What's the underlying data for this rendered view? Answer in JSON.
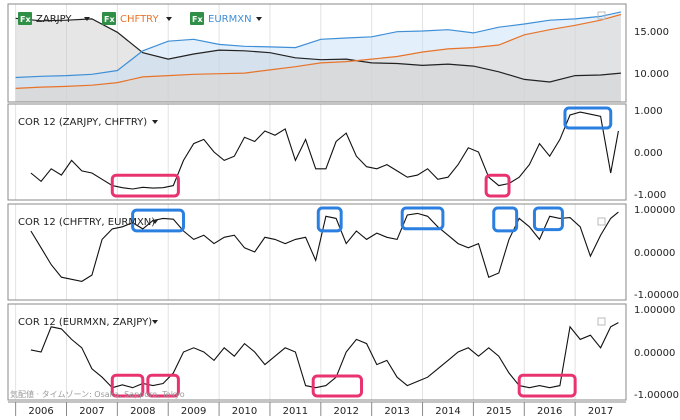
{
  "colors": {
    "background": "#ffffff",
    "zarjpy": "#222222",
    "chftry": "#e8742a",
    "eurmxn": "#3f8fd6",
    "correlation": "#111111",
    "highlight_pink": "#e8336f",
    "highlight_blue": "#2a7fe0",
    "zarjpy_fill": "#c8c8c8",
    "chftry_fill": "#f6c9a6",
    "eurmxn_fill": "#c2dcf3"
  },
  "legend": {
    "fx_icon_label": "Fx",
    "items": [
      {
        "label": "ZARJPY",
        "color": "#222222"
      },
      {
        "label": "CHFTRY",
        "color": "#e8742a"
      },
      {
        "label": "EURMXN",
        "color": "#3f8fd6"
      }
    ]
  },
  "watermark": "気配値 · タイムゾーン: Osaka, Sapporo, Tokyo",
  "x_axis": {
    "range": [
      2005.85,
      2018.0
    ],
    "years": [
      "2006",
      "2007",
      "2008",
      "2009",
      "2010",
      "2011",
      "2012",
      "2013",
      "2014",
      "2015",
      "2016",
      "2017"
    ]
  },
  "chart_data": [
    {
      "type": "area",
      "y_ticks": [
        "15.000",
        "10.000"
      ],
      "ylim": [
        5.0,
        18.5
      ],
      "x": [
        2006.0,
        2006.5,
        2007.0,
        2007.5,
        2008.0,
        2008.5,
        2009.0,
        2009.5,
        2010.0,
        2010.5,
        2011.0,
        2011.5,
        2012.0,
        2012.5,
        2013.0,
        2013.5,
        2014.0,
        2014.5,
        2015.0,
        2015.5,
        2016.0,
        2016.5,
        2017.0,
        2017.5,
        2017.9
      ],
      "series": [
        {
          "name": "ZARJPY",
          "values": [
            17.2,
            16.8,
            16.9,
            17.1,
            15.0,
            11.8,
            10.8,
            11.6,
            12.2,
            12.1,
            11.8,
            11.0,
            10.7,
            10.8,
            10.2,
            10.1,
            9.8,
            10.0,
            9.7,
            8.8,
            7.6,
            7.2,
            8.2,
            8.3,
            8.6
          ]
        },
        {
          "name": "CHFTRY",
          "values": [
            6.2,
            6.4,
            6.5,
            6.7,
            7.1,
            8.0,
            8.2,
            8.4,
            8.5,
            8.6,
            9.1,
            9.6,
            10.2,
            10.4,
            10.8,
            11.2,
            11.9,
            12.4,
            12.6,
            13.0,
            14.6,
            15.4,
            16.1,
            16.9,
            17.8
          ]
        },
        {
          "name": "EURMXN",
          "values": [
            7.9,
            8.1,
            8.2,
            8.4,
            9.0,
            12.1,
            13.6,
            13.9,
            13.1,
            12.8,
            12.7,
            12.6,
            13.9,
            14.1,
            14.3,
            15.1,
            15.2,
            15.4,
            14.9,
            15.8,
            16.3,
            16.9,
            17.1,
            17.5,
            18.2
          ]
        }
      ]
    },
    {
      "type": "line",
      "title": "COR 12 (ZARJPY, CHFTRY)",
      "y_ticks": [
        "1.000",
        "0.000",
        "-1.000"
      ],
      "ylim": [
        -1.0,
        1.0
      ],
      "x": [
        2006.3,
        2006.5,
        2006.7,
        2006.9,
        2007.1,
        2007.3,
        2007.5,
        2007.7,
        2007.9,
        2008.1,
        2008.3,
        2008.5,
        2008.7,
        2008.9,
        2009.1,
        2009.3,
        2009.5,
        2009.7,
        2009.9,
        2010.1,
        2010.3,
        2010.5,
        2010.7,
        2010.9,
        2011.1,
        2011.3,
        2011.5,
        2011.7,
        2011.9,
        2012.1,
        2012.3,
        2012.5,
        2012.7,
        2012.9,
        2013.1,
        2013.3,
        2013.5,
        2013.7,
        2013.9,
        2014.1,
        2014.3,
        2014.5,
        2014.7,
        2014.9,
        2015.1,
        2015.3,
        2015.5,
        2015.7,
        2015.9,
        2016.1,
        2016.3,
        2016.5,
        2016.7,
        2016.9,
        2017.1,
        2017.3,
        2017.5,
        2017.7,
        2017.85
      ],
      "values": [
        -0.5,
        -0.7,
        -0.4,
        -0.55,
        -0.2,
        -0.45,
        -0.5,
        -0.65,
        -0.8,
        -0.85,
        -0.88,
        -0.84,
        -0.86,
        -0.85,
        -0.8,
        -0.2,
        0.2,
        0.3,
        0.0,
        -0.2,
        -0.1,
        0.35,
        0.25,
        0.5,
        0.4,
        0.55,
        -0.2,
        0.3,
        -0.4,
        -0.4,
        0.25,
        0.45,
        -0.1,
        -0.35,
        -0.4,
        -0.3,
        -0.45,
        -0.6,
        -0.55,
        -0.4,
        -0.65,
        -0.6,
        -0.3,
        0.1,
        0.0,
        -0.6,
        -0.8,
        -0.75,
        -0.6,
        -0.3,
        0.2,
        -0.1,
        0.3,
        0.88,
        0.95,
        0.9,
        0.85,
        -0.5,
        0.5
      ]
    },
    {
      "type": "line",
      "title": "COR 12 (CHFTRY, EURMXN)",
      "y_ticks": [
        "1.00000",
        "0.00000",
        "-1.00000"
      ],
      "ylim": [
        -1.0,
        1.0
      ],
      "x": [
        2006.3,
        2006.5,
        2006.7,
        2006.9,
        2007.1,
        2007.3,
        2007.5,
        2007.7,
        2007.9,
        2008.1,
        2008.3,
        2008.5,
        2008.7,
        2008.9,
        2009.1,
        2009.3,
        2009.5,
        2009.7,
        2009.9,
        2010.1,
        2010.3,
        2010.5,
        2010.7,
        2010.9,
        2011.1,
        2011.3,
        2011.5,
        2011.7,
        2011.9,
        2012.1,
        2012.3,
        2012.5,
        2012.7,
        2012.9,
        2013.1,
        2013.3,
        2013.5,
        2013.7,
        2013.9,
        2014.1,
        2014.3,
        2014.5,
        2014.7,
        2014.9,
        2015.1,
        2015.3,
        2015.5,
        2015.7,
        2015.9,
        2016.1,
        2016.3,
        2016.5,
        2016.7,
        2016.9,
        2017.1,
        2017.3,
        2017.5,
        2017.7,
        2017.85
      ],
      "values": [
        0.5,
        0.1,
        -0.3,
        -0.6,
        -0.65,
        -0.7,
        -0.55,
        0.3,
        0.55,
        0.6,
        0.7,
        0.55,
        0.75,
        0.8,
        0.78,
        0.5,
        0.3,
        0.4,
        0.2,
        0.35,
        0.4,
        0.1,
        0.0,
        0.35,
        0.3,
        0.2,
        0.3,
        0.35,
        -0.2,
        0.85,
        0.8,
        0.2,
        0.5,
        0.3,
        0.45,
        0.35,
        0.3,
        0.88,
        0.92,
        0.85,
        0.6,
        0.4,
        0.2,
        0.1,
        0.2,
        -0.6,
        -0.5,
        0.3,
        0.8,
        0.6,
        0.3,
        0.85,
        0.8,
        0.82,
        0.6,
        -0.1,
        0.4,
        0.8,
        0.95
      ]
    },
    {
      "type": "line",
      "title": "COR 12 (EURMXN, ZARJPY)",
      "y_ticks": [
        "1.00000",
        "0.00000",
        "-1.00000"
      ],
      "ylim": [
        -1.0,
        1.0
      ],
      "x": [
        2006.3,
        2006.5,
        2006.7,
        2006.9,
        2007.1,
        2007.3,
        2007.5,
        2007.7,
        2007.9,
        2008.1,
        2008.3,
        2008.5,
        2008.7,
        2008.9,
        2009.1,
        2009.3,
        2009.5,
        2009.7,
        2009.9,
        2010.1,
        2010.3,
        2010.5,
        2010.7,
        2010.9,
        2011.1,
        2011.3,
        2011.5,
        2011.7,
        2011.9,
        2012.1,
        2012.3,
        2012.5,
        2012.7,
        2012.9,
        2013.1,
        2013.3,
        2013.5,
        2013.7,
        2013.9,
        2014.1,
        2014.3,
        2014.5,
        2014.7,
        2014.9,
        2015.1,
        2015.3,
        2015.5,
        2015.7,
        2015.9,
        2016.1,
        2016.3,
        2016.5,
        2016.7,
        2016.9,
        2017.1,
        2017.3,
        2017.5,
        2017.7,
        2017.85
      ],
      "values": [
        0.05,
        0.0,
        0.6,
        0.55,
        0.3,
        0.1,
        -0.4,
        -0.6,
        -0.85,
        -0.78,
        -0.85,
        -0.75,
        -0.8,
        -0.75,
        -0.5,
        0.0,
        0.1,
        0.0,
        -0.2,
        0.1,
        -0.1,
        0.2,
        0.0,
        -0.3,
        -0.1,
        0.1,
        0.0,
        -0.8,
        -0.85,
        -0.8,
        -0.6,
        0.0,
        0.3,
        0.2,
        -0.3,
        -0.2,
        -0.6,
        -0.8,
        -0.7,
        -0.6,
        -0.4,
        -0.2,
        0.0,
        0.1,
        -0.1,
        0.1,
        -0.1,
        -0.5,
        -0.8,
        -0.85,
        -0.8,
        -0.85,
        -0.8,
        0.6,
        0.3,
        0.4,
        0.1,
        0.6,
        0.7
      ]
    }
  ],
  "highlights": [
    {
      "pane": 1,
      "color": "pink",
      "x0": 2007.9,
      "x1": 2009.2,
      "y0": -0.6,
      "y1": -1.0
    },
    {
      "pane": 1,
      "color": "pink",
      "x0": 2015.25,
      "x1": 2015.7,
      "y0": -0.6,
      "y1": -1.0
    },
    {
      "pane": 1,
      "color": "blue",
      "x0": 2016.8,
      "x1": 2017.7,
      "y0": 1.0,
      "y1": 0.62
    },
    {
      "pane": 2,
      "color": "blue",
      "x0": 2008.3,
      "x1": 2009.3,
      "y0": 0.95,
      "y1": 0.55
    },
    {
      "pane": 2,
      "color": "blue",
      "x0": 2011.95,
      "x1": 2012.4,
      "y0": 1.0,
      "y1": 0.55
    },
    {
      "pane": 2,
      "color": "blue",
      "x0": 2013.6,
      "x1": 2014.4,
      "y0": 1.0,
      "y1": 0.6
    },
    {
      "pane": 2,
      "color": "blue",
      "x0": 2015.4,
      "x1": 2015.85,
      "y0": 1.0,
      "y1": 0.55
    },
    {
      "pane": 2,
      "color": "blue",
      "x0": 2016.2,
      "x1": 2016.75,
      "y0": 1.0,
      "y1": 0.58
    },
    {
      "pane": 3,
      "color": "pink",
      "x0": 2007.9,
      "x1": 2008.5,
      "y0": -0.6,
      "y1": -1.0
    },
    {
      "pane": 3,
      "color": "pink",
      "x0": 2008.6,
      "x1": 2009.2,
      "y0": -0.6,
      "y1": -1.0
    },
    {
      "pane": 3,
      "color": "pink",
      "x0": 2011.85,
      "x1": 2012.8,
      "y0": -0.62,
      "y1": -1.0
    },
    {
      "pane": 3,
      "color": "pink",
      "x0": 2015.9,
      "x1": 2017.0,
      "y0": -0.6,
      "y1": -1.0
    }
  ]
}
